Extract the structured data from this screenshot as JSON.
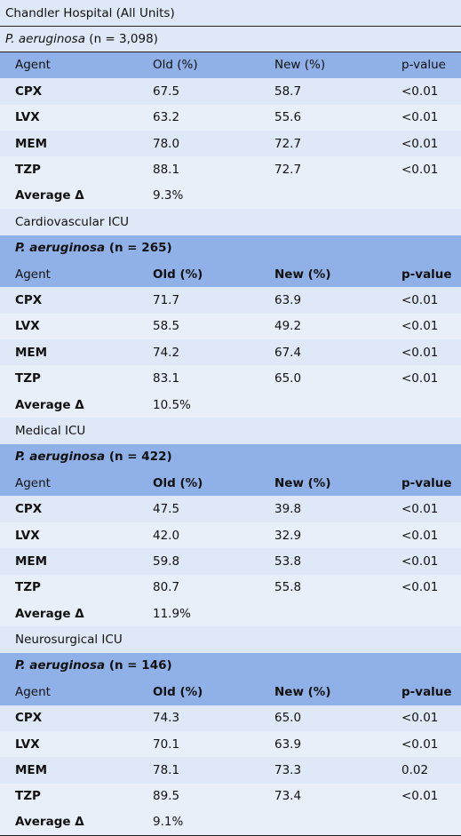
{
  "sections": [
    {
      "title": "Chandler Hospital (All Units)",
      "organism": "P. aeruginosa",
      "count": "(n = 3,098)",
      "header": [
        "Agent",
        "Old (%)",
        "New (%)",
        "p-value"
      ],
      "rows": [
        [
          "CPX",
          "67.5",
          "58.7",
          "<0.01"
        ],
        [
          "LVX",
          "63.2",
          "55.6",
          "<0.01"
        ],
        [
          "MEM",
          "78.0",
          "72.7",
          "<0.01"
        ],
        [
          "TZP",
          "88.1",
          "72.7",
          "<0.01"
        ]
      ],
      "average": [
        "Average Δ",
        "9.3%"
      ]
    },
    {
      "title": "Cardiovascular ICU",
      "organism": "P. aeruginosa",
      "count": "(n = 265)",
      "header": [
        "Agent",
        "Old (%)",
        "New (%)",
        "p-value"
      ],
      "rows": [
        [
          "CPX",
          "71.7",
          "63.9",
          "<0.01"
        ],
        [
          "LVX",
          "58.5",
          "49.2",
          "<0.01"
        ],
        [
          "MEM",
          "74.2",
          "67.4",
          "<0.01"
        ],
        [
          "TZP",
          "83.1",
          "65.0",
          "<0.01"
        ]
      ],
      "average": [
        "Average Δ",
        "10.5%"
      ]
    },
    {
      "title": "Medical ICU",
      "organism": "P. aeruginosa",
      "count": "(n = 422)",
      "header": [
        "Agent",
        "Old (%)",
        "New (%)",
        "p-value"
      ],
      "rows": [
        [
          "CPX",
          "47.5",
          "39.8",
          "<0.01"
        ],
        [
          "LVX",
          "42.0",
          "32.9",
          "<0.01"
        ],
        [
          "MEM",
          "59.8",
          "53.8",
          "<0.01"
        ],
        [
          "TZP",
          "80.7",
          "55.8",
          "<0.01"
        ]
      ],
      "average": [
        "Average Δ",
        "11.9%"
      ]
    },
    {
      "title": "Neurosurgical ICU",
      "organism": "P. aeruginosa",
      "count": "(n = 146)",
      "header": [
        "Agent",
        "Old (%)",
        "New (%)",
        "p-value"
      ],
      "rows": [
        [
          "CPX",
          "74.3",
          "65.0",
          "<0.01"
        ],
        [
          "LVX",
          "70.1",
          "63.9",
          "<0.01"
        ],
        [
          "MEM",
          "78.1",
          "73.3",
          "0.02"
        ],
        [
          "TZP",
          "89.5",
          "73.4",
          "<0.01"
        ]
      ],
      "average": [
        "Average Δ",
        "9.1%"
      ]
    }
  ]
}
